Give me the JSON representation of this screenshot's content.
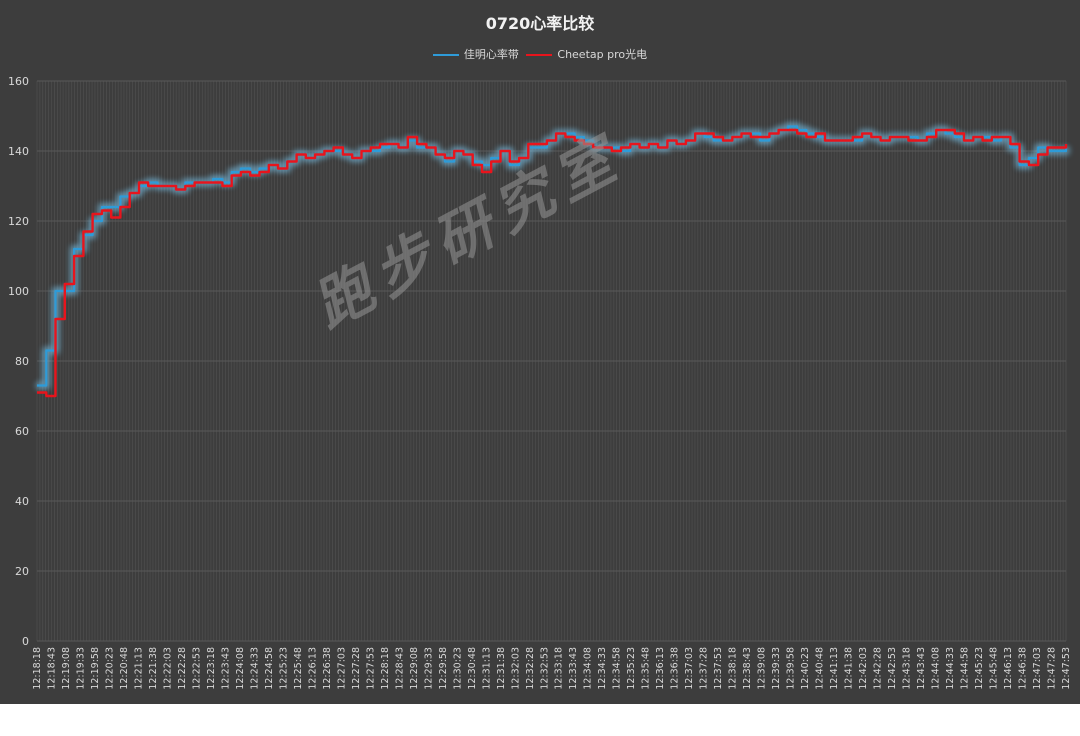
{
  "colors": {
    "background": "#3d3d3d",
    "grid": "#595959",
    "series_garmin": "#2e9bd8",
    "series_cheetap": "#e8141c",
    "glow": "#7fd3ff"
  },
  "watermark": "跑步研究室",
  "chart_data": {
    "type": "line",
    "title": "0720心率比较",
    "xlabel": "",
    "ylabel": "",
    "ylim": [
      0,
      160
    ],
    "yticks": [
      0,
      20,
      40,
      60,
      80,
      100,
      120,
      140,
      160
    ],
    "grid": true,
    "legend_position": "top",
    "x_tick_labels": [
      "12:18:18",
      "12:18:43",
      "12:19:08",
      "12:19:33",
      "12:19:58",
      "12:20:23",
      "12:20:48",
      "12:21:13",
      "12:21:38",
      "12:22:03",
      "12:22:28",
      "12:22:53",
      "12:23:18",
      "12:23:43",
      "12:24:08",
      "12:24:33",
      "12:24:58",
      "12:25:23",
      "12:25:48",
      "12:26:13",
      "12:26:38",
      "12:27:03",
      "12:27:28",
      "12:27:53",
      "12:28:18",
      "12:28:43",
      "12:29:08",
      "12:29:33",
      "12:29:58",
      "12:30:23",
      "12:30:48",
      "12:31:13",
      "12:31:38",
      "12:32:03",
      "12:32:28",
      "12:32:53",
      "12:33:18",
      "12:33:43",
      "12:34:08",
      "12:34:33",
      "12:34:58",
      "12:35:23",
      "12:35:48",
      "12:36:13",
      "12:36:38",
      "12:37:03",
      "12:37:28",
      "12:37:53",
      "12:38:18",
      "12:38:43",
      "12:39:08",
      "12:39:33",
      "12:39:58",
      "12:40:23",
      "12:40:48",
      "12:41:13",
      "12:41:38",
      "12:42:03",
      "12:42:28",
      "12:42:53",
      "12:43:18",
      "12:43:43",
      "12:44:08",
      "12:44:33",
      "12:44:58",
      "12:45:23",
      "12:45:48",
      "12:46:13",
      "12:46:38",
      "12:47:03",
      "12:47:28",
      "12:47:53"
    ],
    "series": [
      {
        "name": "佳明心率带",
        "values": [
          73,
          83,
          100,
          100,
          112,
          116,
          120,
          124,
          124,
          127,
          128,
          130,
          131,
          130,
          130,
          129,
          131,
          131,
          131,
          132,
          131,
          134,
          135,
          134,
          135,
          136,
          135,
          137,
          139,
          138,
          139,
          140,
          140,
          139,
          138,
          140,
          140,
          141,
          142,
          141,
          143,
          141,
          141,
          139,
          137,
          140,
          139,
          137,
          136,
          138,
          140,
          136,
          138,
          141,
          141,
          143,
          145,
          145,
          144,
          143,
          141,
          141,
          141,
          140,
          142,
          141,
          142,
          141,
          143,
          142,
          143,
          145,
          144,
          143,
          143,
          144,
          145,
          145,
          143,
          145,
          146,
          147,
          146,
          145,
          144,
          143,
          143,
          143,
          143,
          145,
          144,
          143,
          144,
          144,
          144,
          143,
          145,
          146,
          145,
          144,
          143,
          144,
          144,
          143,
          144,
          141,
          136,
          138,
          141,
          140,
          140,
          141
        ]
      },
      {
        "name": "Cheetap pro光电",
        "values": [
          71,
          70,
          92,
          102,
          110,
          117,
          122,
          123,
          121,
          124,
          128,
          131,
          130,
          130,
          130,
          129,
          130,
          131,
          131,
          131,
          130,
          133,
          134,
          133,
          134,
          136,
          135,
          137,
          139,
          138,
          139,
          140,
          141,
          139,
          138,
          140,
          141,
          142,
          142,
          141,
          144,
          142,
          141,
          139,
          138,
          140,
          139,
          136,
          134,
          137,
          140,
          137,
          138,
          142,
          142,
          143,
          145,
          144,
          143,
          142,
          141,
          141,
          140,
          141,
          142,
          141,
          142,
          141,
          143,
          142,
          143,
          145,
          145,
          144,
          143,
          144,
          145,
          144,
          144,
          145,
          146,
          146,
          145,
          144,
          145,
          143,
          143,
          143,
          144,
          145,
          144,
          143,
          144,
          144,
          143,
          143,
          144,
          146,
          146,
          145,
          143,
          144,
          143,
          144,
          144,
          142,
          137,
          136,
          139,
          141,
          141,
          142
        ]
      }
    ]
  }
}
